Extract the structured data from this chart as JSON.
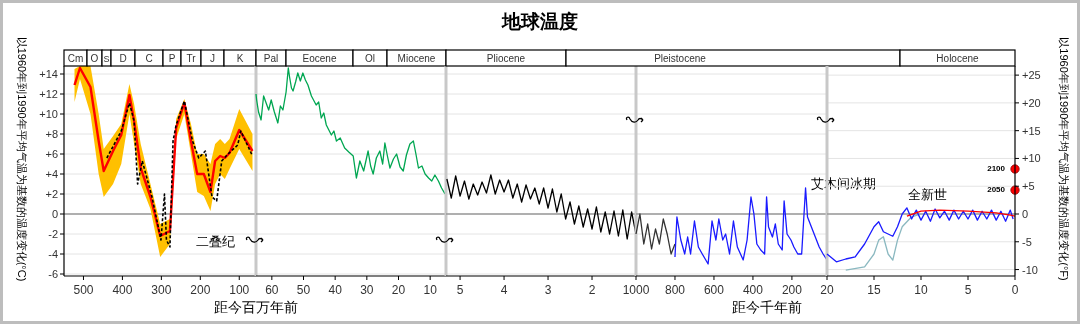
{
  "chart_data": [
    {
      "type": "line",
      "ylabel": "以1960年到1990年平均气温为基数的温度变化(°C)",
      "xlabel": "距今百万年前",
      "xlim": [
        550,
        57
      ],
      "xticks": [
        500,
        400,
        300,
        200,
        100
      ],
      "ylim": [
        -6.2,
        14.8
      ],
      "yticks": [
        {
          "value": -6,
          "label": "-6"
        },
        {
          "value": -4,
          "label": "-4"
        },
        {
          "value": -2,
          "label": "-2"
        },
        0,
        {
          "value": 2,
          "label": "+2"
        },
        {
          "value": 4,
          "label": "+4"
        },
        {
          "value": 6,
          "label": "+6"
        },
        {
          "value": 8,
          "label": "+8"
        },
        {
          "value": 10,
          "label": "+10"
        },
        {
          "value": 12,
          "label": "+12"
        },
        {
          "value": 14,
          "label": "+14"
        }
      ],
      "grid": "y",
      "series": [
        {
          "type": "line",
          "color": "#ff0000",
          "x": [
            523,
            509,
            482,
            461,
            448,
            424,
            403,
            382,
            370,
            353,
            328,
            303,
            278,
            262,
            241,
            224,
            208,
            191,
            174,
            162,
            149,
            137,
            125,
            100,
            66
          ],
          "values": [
            12.9,
            14.6,
            12.7,
            7.3,
            4.3,
            6.3,
            7.9,
            11.9,
            9.3,
            4.6,
            1.7,
            -2.2,
            -1.7,
            8.6,
            11.1,
            7.3,
            4.0,
            4.0,
            2.2,
            5.3,
            5.8,
            5.6,
            6.1,
            8.4,
            6.3
          ],
          "lower": [
            11.2,
            13.5,
            10,
            4,
            1.7,
            3,
            5,
            10,
            7,
            3,
            0.5,
            -4.3,
            -3,
            7.5,
            10,
            6,
            2.2,
            1.8,
            0.3,
            3,
            4,
            3.5,
            4.5,
            6.5,
            4.3
          ],
          "upper": [
            14.5,
            14.8,
            14.8,
            10,
            6.5,
            7.8,
            9,
            13,
            11,
            7,
            3,
            -1,
            -0.5,
            9.5,
            11.5,
            9,
            6,
            6,
            5,
            7,
            7.5,
            7,
            7.5,
            10.5,
            8
          ]
        },
        {
          "type": "line",
          "color": "#000000",
          "line_style": "dashed",
          "x": [
            440,
            403,
            382,
            370,
            361,
            349,
            324,
            301,
            292,
            287,
            278,
            270,
            262,
            241,
            220,
            204,
            187,
            170,
            158,
            145,
            129,
            104,
            96,
            66
          ],
          "values": [
            5.6,
            8.3,
            11.1,
            9.3,
            3.0,
            5.3,
            1.7,
            -2.6,
            2.0,
            -2.6,
            -3.3,
            7.3,
            8.9,
            11.3,
            7.3,
            5.6,
            6.3,
            1.7,
            1.3,
            5.3,
            6.0,
            6.9,
            8.3,
            5.8
          ]
        }
      ],
      "ref_lines": [
        {
          "axis": "y",
          "value": 0,
          "color": "#999999"
        }
      ],
      "annotations": [
        "Cm",
        "O",
        "S",
        "D",
        "C",
        "P",
        "Tr",
        "J",
        "K",
        "二叠纪"
      ]
    },
    {
      "type": "line",
      "tick_labels": "x",
      "xlim": [
        65,
        5
      ],
      "xticks": [
        60,
        50,
        40,
        30,
        20,
        10
      ],
      "ylim": [
        -6.2,
        14.8
      ],
      "yticks": [
        -6,
        -4,
        -2,
        0,
        2,
        4,
        6,
        8,
        10,
        12,
        14
      ],
      "grid": "y",
      "series": [
        {
          "type": "line",
          "color": "#00a651",
          "x": [
            65,
            64.8,
            64.2,
            63.4,
            62.6,
            61.8,
            61,
            60.2,
            59.2,
            58.1,
            57.3,
            56.5,
            55.5,
            54.8,
            54.4,
            53.8,
            53.3,
            52.5,
            51.8,
            51,
            50.2,
            49.4,
            48.6,
            47.5,
            46,
            45.2,
            44.4,
            43.6,
            42.8,
            42,
            41.2,
            40.4,
            39.6,
            38.4,
            37,
            35.7,
            34.3,
            33.3,
            32.2,
            31,
            29.6,
            28.8,
            28,
            27,
            25.9,
            25,
            24.3,
            23.5,
            22.7,
            21.6,
            20.6,
            19.5,
            18.5,
            17.5,
            16.4,
            15.3,
            14.5,
            13.7,
            12.6,
            11.6,
            10.5,
            9.5,
            8.5,
            7.4,
            6.4,
            5.3
          ],
          "values": [
            12,
            11.4,
            10.2,
            9.4,
            11.8,
            11.1,
            10.4,
            11.4,
            10.2,
            9.1,
            10.8,
            10.4,
            12.2,
            14.6,
            13.7,
            12.6,
            12.3,
            13.2,
            14.1,
            13.3,
            14.1,
            13.4,
            12.9,
            11.8,
            10.9,
            11.2,
            9.6,
            10.1,
            8.9,
            8.4,
            7.9,
            8.3,
            7.3,
            7.6,
            6.6,
            6.2,
            5.8,
            3.6,
            5.3,
            4.3,
            6.3,
            4.8,
            4.0,
            5.6,
            6.3,
            5.0,
            7.1,
            5.8,
            4.6,
            5.5,
            6.0,
            4.7,
            4.3,
            5.9,
            7.0,
            7.3,
            6.0,
            4.6,
            4.8,
            4.0,
            3.6,
            3.3,
            3.9,
            3.3,
            2.6,
            2.0
          ]
        }
      ],
      "ref_lines": [
        {
          "axis": "y",
          "value": 0,
          "color": "#999999"
        }
      ],
      "annotations": [
        "Pal",
        "Eocene",
        "Ol",
        "Miocene"
      ]
    },
    {
      "type": "line",
      "title": "地球温度",
      "tick_labels": "x",
      "xlim": [
        5.32,
        1
      ],
      "xticks": [
        5,
        4,
        3,
        2
      ],
      "ylim": [
        -6.2,
        14.8
      ],
      "yticks": [
        -6,
        -4,
        -2,
        0,
        2,
        4,
        6,
        8,
        10,
        12,
        14
      ],
      "grid": "y",
      "series": [
        {
          "type": "line",
          "color": "#000000",
          "x": [
            5.3,
            5.2,
            5.1,
            5.0,
            4.9,
            4.8,
            4.7,
            4.6,
            4.5,
            4.4,
            4.3,
            4.2,
            4.1,
            4.0,
            3.9,
            3.8,
            3.7,
            3.6,
            3.5,
            3.4,
            3.3,
            3.2,
            3.1,
            3.0,
            2.9,
            2.8,
            2.7,
            2.6,
            2.5,
            2.4,
            2.3,
            2.2,
            2.1,
            2.0,
            1.9,
            1.8,
            1.7,
            1.6,
            1.5,
            1.4,
            1.3,
            1.2,
            1.1,
            1.0
          ],
          "values": [
            3.5,
            1.6,
            3.8,
            1.8,
            3.3,
            1.5,
            3.0,
            1.9,
            3.2,
            2.1,
            3.9,
            2.0,
            3.4,
            2.2,
            3.4,
            1.6,
            3.0,
            1.2,
            2.9,
            1.5,
            2.6,
            1.0,
            2.6,
            0.6,
            2.5,
            0.2,
            2.0,
            -0.5,
            1.2,
            -1.0,
            0.8,
            -1.3,
            0.5,
            -1.5,
            0.7,
            -1.8,
            0.2,
            -2.0,
            0.3,
            -2.2,
            0.4,
            -2.5,
            0.2,
            -2.0
          ]
        }
      ],
      "ref_lines": [
        {
          "axis": "y",
          "value": 0,
          "color": "#999999"
        }
      ],
      "annotations": [
        "Pliocene"
      ]
    },
    {
      "type": "line",
      "tick_labels": "x",
      "xlabel": "距今千年前",
      "xlim": [
        1000,
        20
      ],
      "xticks": [
        1000,
        800,
        600,
        400,
        200
      ],
      "ylim": [
        -6.2,
        14.8
      ],
      "yticks": [
        -6,
        -4,
        -2,
        0,
        2,
        4,
        6,
        8,
        10,
        12,
        14
      ],
      "grid": "y",
      "series": [
        {
          "type": "line",
          "color": "#333333",
          "x": [
            1000,
            990,
            980,
            960,
            940,
            920,
            900,
            880,
            860,
            840,
            820,
            800
          ],
          "values": [
            -2,
            -1,
            0,
            -3,
            -1,
            -3.5,
            -1.5,
            -3,
            -0.5,
            -2,
            -4,
            -3
          ]
        },
        {
          "type": "line",
          "color": "#1a1aff",
          "x": [
            800,
            790,
            770,
            750,
            735,
            720,
            700,
            680,
            660,
            630,
            610,
            590,
            575,
            555,
            540,
            520,
            500,
            480,
            450,
            430,
            410,
            395,
            380,
            360,
            340,
            330,
            320,
            300,
            285,
            270,
            250,
            240,
            225,
            205,
            190,
            170,
            150,
            130,
            120,
            100,
            80,
            60,
            40,
            20
          ],
          "values": [
            -4.3,
            -0.3,
            -2.6,
            -4.0,
            -2.3,
            -4,
            -0.7,
            -3.3,
            -4,
            -5,
            -0.7,
            -2.6,
            -0.5,
            -2.6,
            -2,
            -4,
            -0.7,
            -3.3,
            -4.6,
            -2.6,
            1.7,
            0,
            -3,
            -3.6,
            -4,
            1.7,
            -1.3,
            -2.3,
            -1,
            -3,
            -3.6,
            1.3,
            -2,
            -2.6,
            -3.3,
            -4,
            -4,
            2.6,
            -0.3,
            -1.3,
            -2.3,
            -3.3,
            -4,
            -4.6
          ]
        }
      ],
      "ref_lines": [
        {
          "axis": "y",
          "value": 0,
          "color": "#999999"
        }
      ],
      "annotations": [
        "Pleistocene",
        {
          "text": "艾木间冰期",
          "x": 128,
          "y": 2.6
        }
      ]
    },
    {
      "type": "line",
      "y2label": "以1960年到1990年平均气温为基数的温度变化(°F)",
      "xlim": [
        20,
        0
      ],
      "xticks": [
        20,
        15,
        10,
        5,
        0
      ],
      "grid": "y",
      "y2lim": [
        -11.16,
        26.64
      ],
      "y2ticks": [
        {
          "value": -10,
          "label": "-10"
        },
        {
          "value": -5,
          "label": "-5"
        },
        0,
        {
          "value": 5,
          "label": "+5"
        },
        {
          "value": 10,
          "label": "+10"
        },
        {
          "value": 15,
          "label": "+15"
        },
        {
          "value": 20,
          "label": "+20"
        },
        {
          "value": 25,
          "label": "+25"
        }
      ],
      "series": [
        {
          "type": "line",
          "axis": "y2",
          "color": "#8ab8c0",
          "x": [
            18,
            16,
            15,
            14.5,
            14,
            13.5,
            13,
            12.5,
            12,
            11,
            10
          ],
          "values": [
            -10.1,
            -9.5,
            -7.2,
            -4.7,
            -4.1,
            -7.2,
            -8.3,
            -4.7,
            -2.3,
            -0.5,
            0
          ]
        },
        {
          "type": "line",
          "axis": "y2",
          "color": "#1a1aff",
          "x": [
            20,
            19,
            18,
            17,
            16,
            15,
            14.5,
            14,
            13,
            12.5,
            12,
            11.5,
            11,
            10.5,
            10,
            9.5,
            9,
            8.5,
            8,
            7.5,
            7,
            6.5,
            6,
            5.5,
            5,
            4.5,
            4,
            3.5,
            3,
            2.5,
            2,
            1.5,
            1,
            0.5,
            0.2
          ],
          "values": [
            -7.2,
            -8.6,
            -8.1,
            -7.7,
            -5.4,
            -2.3,
            -1.4,
            -3.2,
            -4,
            -2.3,
            0,
            1.1,
            -0.9,
            0.7,
            -1.1,
            0.5,
            -1.3,
            0.9,
            -0.7,
            0.5,
            -1.1,
            0.7,
            -0.9,
            0.5,
            -0.9,
            0.7,
            -1.1,
            0.5,
            -0.9,
            0.7,
            -1.1,
            0.5,
            -1.3,
            0.7,
            -0.9
          ]
        },
        {
          "type": "line",
          "axis": "y2",
          "color": "#ff0000",
          "x": [
            11.5,
            10,
            8,
            5,
            2,
            0.5,
            0
          ],
          "values": [
            -0.4,
            0.5,
            0.7,
            0.5,
            0.2,
            -0.2,
            -0.4
          ]
        },
        {
          "type": "scatter",
          "axis": "y2",
          "color": "#ff0000",
          "marker": "circle",
          "x": [
            0,
            0
          ],
          "values": [
            4.3,
            8.1
          ]
        }
      ],
      "ref_lines": [
        {
          "axis": "y2",
          "value": 0,
          "color": "#999999"
        }
      ],
      "annotations": [
        "Holocene",
        "全新世",
        "2050",
        "2100"
      ]
    }
  ]
}
